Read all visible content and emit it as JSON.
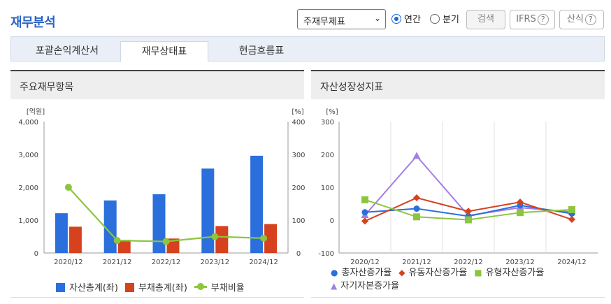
{
  "header": {
    "title": "재무분석",
    "select_value": "주재무제표",
    "radio_annual": "연간",
    "radio_quarter": "분기",
    "search_label": "검색",
    "ifrs_label": "IFRS",
    "calc_label": "산식"
  },
  "tabs": [
    "포괄손익계산서",
    "재무상태표",
    "현금흐름표"
  ],
  "left_panel": {
    "title": "주요재무항목"
  },
  "right_panel": {
    "title": "자산성장성지표"
  },
  "chart_data": [
    {
      "type": "bar",
      "title": "주요재무항목",
      "categories": [
        "2020/12",
        "2021/12",
        "2022/12",
        "2023/12",
        "2024/12"
      ],
      "y_left_unit": "[억원]",
      "y_right_unit": "[%]",
      "y_left_ticks": [
        "4,000",
        "3,000",
        "2,000",
        "1,000",
        "0"
      ],
      "y_right_ticks": [
        "400",
        "300",
        "200",
        "100",
        "0"
      ],
      "ylim_left": [
        0,
        4000
      ],
      "ylim_right": [
        0,
        400
      ],
      "series": [
        {
          "name": "자산총계(좌)",
          "type": "bar",
          "color": "#2b6fdc",
          "values": [
            1210,
            1600,
            1790,
            2570,
            2960
          ]
        },
        {
          "name": "부채총계(좌)",
          "type": "bar",
          "color": "#d6411e",
          "values": [
            800,
            400,
            440,
            820,
            880
          ]
        },
        {
          "name": "부채비율",
          "type": "line",
          "color": "#8cc63e",
          "values": [
            200,
            38,
            35,
            50,
            45
          ]
        }
      ]
    },
    {
      "type": "line",
      "title": "자산성장성지표",
      "categories": [
        "2020/12",
        "2021/12",
        "2022/12",
        "2023/12",
        "2024/12"
      ],
      "y_unit": "[%]",
      "y_ticks": [
        "300",
        "200",
        "100",
        "0",
        "-100"
      ],
      "ylim": [
        -100,
        300
      ],
      "series": [
        {
          "name": "총자산증가율",
          "color": "#2b6fdc",
          "marker": "circle",
          "values": [
            24,
            35,
            12,
            45,
            20
          ]
        },
        {
          "name": "유동자산증가율",
          "color": "#d6411e",
          "marker": "diamond",
          "values": [
            -3,
            68,
            27,
            55,
            2
          ]
        },
        {
          "name": "유형자산증가율",
          "color": "#8cc63e",
          "marker": "square",
          "values": [
            62,
            10,
            1,
            23,
            32
          ]
        },
        {
          "name": "자기자본증가율",
          "color": "#a57fe0",
          "marker": "triangle",
          "values": [
            15,
            195,
            14,
            38,
            25
          ]
        }
      ]
    }
  ]
}
